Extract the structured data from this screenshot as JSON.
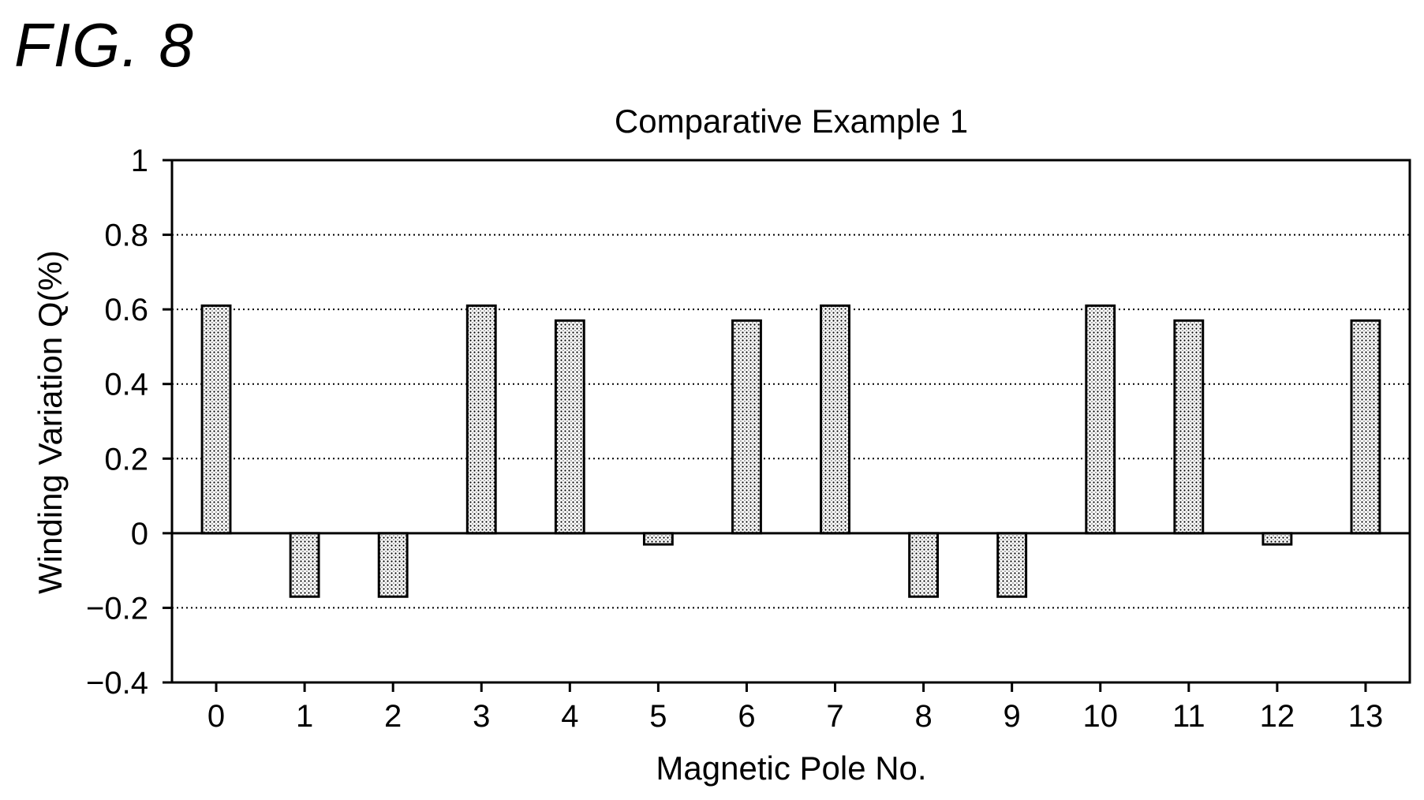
{
  "figure_label": "FIG. 8",
  "chart_data": {
    "type": "bar",
    "title": "Comparative Example 1",
    "xlabel": "Magnetic Pole No.",
    "ylabel": "Winding Variation Q(%)",
    "categories": [
      "0",
      "1",
      "2",
      "3",
      "4",
      "5",
      "6",
      "7",
      "8",
      "9",
      "10",
      "11",
      "12",
      "13"
    ],
    "values": [
      0.61,
      -0.17,
      -0.17,
      0.61,
      0.57,
      -0.03,
      0.57,
      0.61,
      -0.17,
      -0.17,
      0.61,
      0.57,
      -0.03,
      0.57
    ],
    "ylim": [
      -0.4,
      1
    ],
    "yticks": [
      1,
      0.8,
      0.6,
      0.4,
      0.2,
      0,
      -0.2,
      -0.4
    ],
    "ytick_labels": [
      "1",
      "0.8",
      "0.6",
      "0.4",
      "0.2",
      "0",
      "−0.2",
      "−0.4"
    ],
    "grid": "horizontal-dotted",
    "bar_fill": "dotted-pattern"
  }
}
